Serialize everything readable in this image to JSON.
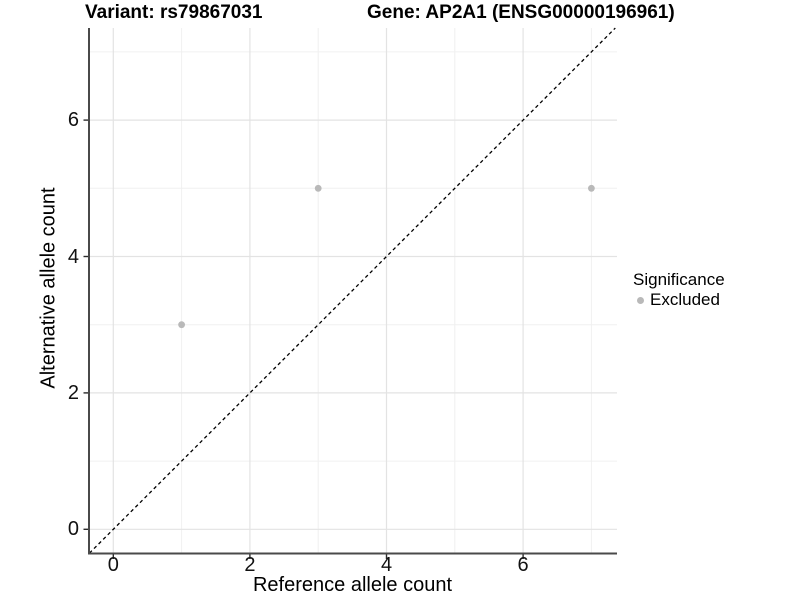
{
  "chart_data": {
    "type": "scatter",
    "title_left": "Variant: rs79867031",
    "title_right": "Gene: AP2A1 (ENSG00000196961)",
    "xlabel": "Reference allele count",
    "ylabel": "Alternative allele count",
    "xlim": [
      -0.35,
      7.35
    ],
    "ylim": [
      -0.35,
      7.35
    ],
    "x_ticks": [
      0,
      2,
      4,
      6
    ],
    "y_ticks": [
      0,
      2,
      4,
      6
    ],
    "minor_gridlines_x": [
      1,
      3,
      5,
      7
    ],
    "minor_gridlines_y": [
      1,
      3,
      5,
      7
    ],
    "grid": "on",
    "identity_line": {
      "style": "dashed",
      "slope": 1,
      "intercept": 0,
      "color": "#000000"
    },
    "series": [
      {
        "name": "Excluded",
        "color": "#b9b9b9",
        "points": [
          {
            "x": 1,
            "y": 3
          },
          {
            "x": 3,
            "y": 5
          },
          {
            "x": 7,
            "y": 5
          }
        ]
      }
    ],
    "legend": {
      "title": "Significance",
      "position": "right",
      "entries": [
        {
          "label": "Excluded",
          "color": "#b9b9b9"
        }
      ]
    },
    "colors": {
      "background": "#ffffff",
      "grid_major": "#e3e3e3",
      "grid_minor": "#f0f0f0",
      "axis_line": "#4a4a4a",
      "tick_mark": "#2b2b2b",
      "text": "#000000"
    }
  }
}
